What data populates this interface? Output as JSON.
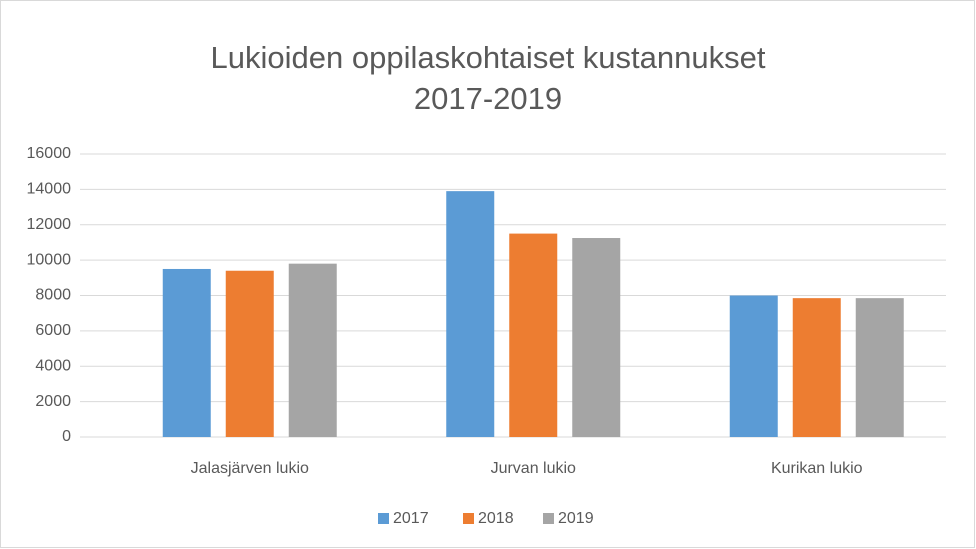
{
  "chart_data": {
    "type": "bar",
    "title": [
      "Lukioiden oppilaskohtaiset kustannukset",
      "2017-2019"
    ],
    "categories": [
      "Jalasjärven lukio",
      "Jurvan lukio",
      "Kurikan lukio"
    ],
    "series": [
      {
        "name": "2017",
        "color": "#5b9bd5",
        "values": [
          9500,
          13900,
          8000
        ]
      },
      {
        "name": "2018",
        "color": "#ed7d31",
        "values": [
          9400,
          11500,
          7850
        ]
      },
      {
        "name": "2019",
        "color": "#a5a5a5",
        "values": [
          9800,
          11250,
          7850
        ]
      }
    ],
    "ylim": [
      0,
      16000
    ],
    "yticks": [
      0,
      2000,
      4000,
      6000,
      8000,
      10000,
      12000,
      14000,
      16000
    ],
    "grid": true,
    "legend": "bottom"
  }
}
